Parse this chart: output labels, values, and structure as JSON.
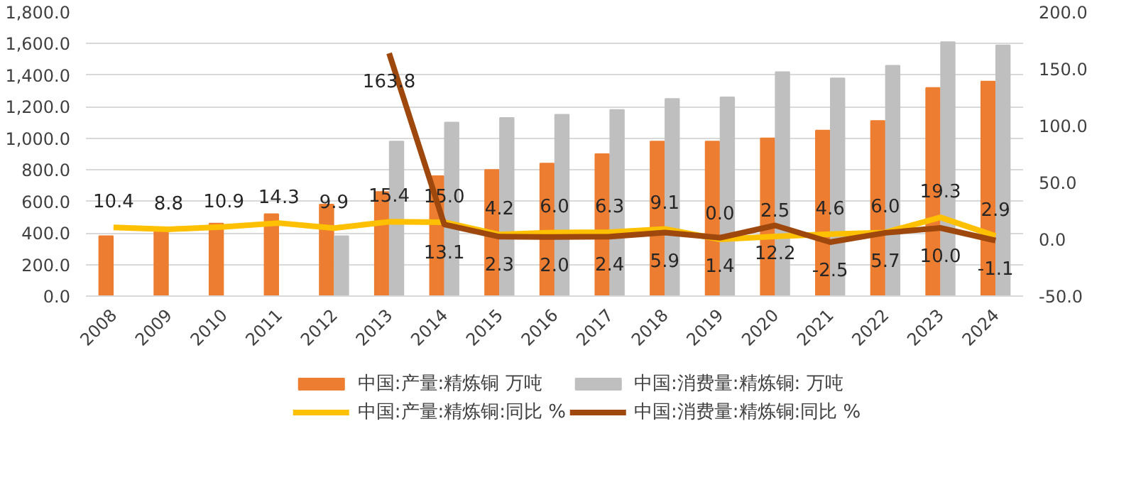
{
  "chart_data": {
    "type": "bar",
    "categories": [
      "2008",
      "2009",
      "2010",
      "2011",
      "2012",
      "2013",
      "2014",
      "2015",
      "2016",
      "2017",
      "2018",
      "2019",
      "2020",
      "2021",
      "2022",
      "2023",
      "2024"
    ],
    "series": [
      {
        "name": "中国:产量:精炼铜 万吨",
        "color": "#ed7d31",
        "values": [
          380,
          420,
          460,
          520,
          580,
          660,
          760,
          800,
          840,
          900,
          980,
          980,
          1000,
          1050,
          1110,
          1320,
          1360
        ]
      },
      {
        "name": "中国:消费量:精炼铜: 万吨",
        "color": "#bfbfbf",
        "values": [
          null,
          null,
          null,
          null,
          380,
          980,
          1100,
          1130,
          1150,
          1180,
          1250,
          1260,
          1420,
          1380,
          1460,
          1610,
          1590
        ]
      },
      {
        "name": "中国:产量:精炼铜:同比 %",
        "color": "#ffc000",
        "type": "line",
        "axis": "y2",
        "values": [
          10.4,
          8.8,
          10.9,
          14.3,
          9.9,
          15.4,
          15.0,
          4.2,
          6.0,
          6.3,
          9.1,
          0.0,
          2.5,
          4.6,
          6.0,
          19.3,
          2.9
        ],
        "value_labels": [
          "10.4",
          "8.8",
          "10.9",
          "14.3",
          "9.9",
          "15.4",
          "15.0",
          "4.2",
          "6.0",
          "6.3",
          "9.1",
          "0.0",
          "2.5",
          "4.6",
          "6.0",
          "19.3",
          "2.9"
        ]
      },
      {
        "name": "中国:消费量:精炼铜:同比 %",
        "color": "#9e480e",
        "type": "line",
        "axis": "y2",
        "values": [
          null,
          null,
          null,
          null,
          null,
          163.8,
          13.1,
          2.3,
          2.0,
          2.4,
          5.9,
          1.4,
          12.2,
          -2.5,
          5.7,
          10.0,
          -1.1
        ],
        "value_labels": [
          null,
          null,
          null,
          null,
          null,
          "163.8",
          "13.1",
          "2.3",
          "2.0",
          "2.4",
          "5.9",
          "1.4",
          "12.2",
          "-2.5",
          "5.7",
          "10.0",
          "-1.1"
        ]
      }
    ],
    "ylim": [
      0,
      1800
    ],
    "yticks": [
      {
        "value": 0,
        "label": "0.0"
      },
      {
        "value": 200,
        "label": "200.0"
      },
      {
        "value": 400,
        "label": "400.0"
      },
      {
        "value": 600,
        "label": "600.0"
      },
      {
        "value": 800,
        "label": "800.0"
      },
      {
        "value": 1000,
        "label": "1,000.0"
      },
      {
        "value": 1200,
        "label": "1,200.0"
      },
      {
        "value": 1400,
        "label": "1,400.0"
      },
      {
        "value": 1600,
        "label": "1,600.0"
      },
      {
        "value": 1800,
        "label": "1,800.0"
      }
    ],
    "y2lim": [
      -50,
      200
    ],
    "y2ticks": [
      {
        "value": -50,
        "label": "-50.0"
      },
      {
        "value": 0,
        "label": "0.0"
      },
      {
        "value": 50,
        "label": "50.0"
      },
      {
        "value": 100,
        "label": "100.0"
      },
      {
        "value": 150,
        "label": "150.0"
      },
      {
        "value": 200,
        "label": "200.0"
      }
    ],
    "grid": "y",
    "legend": "bottom",
    "line_style": "solid",
    "marker": "none"
  }
}
